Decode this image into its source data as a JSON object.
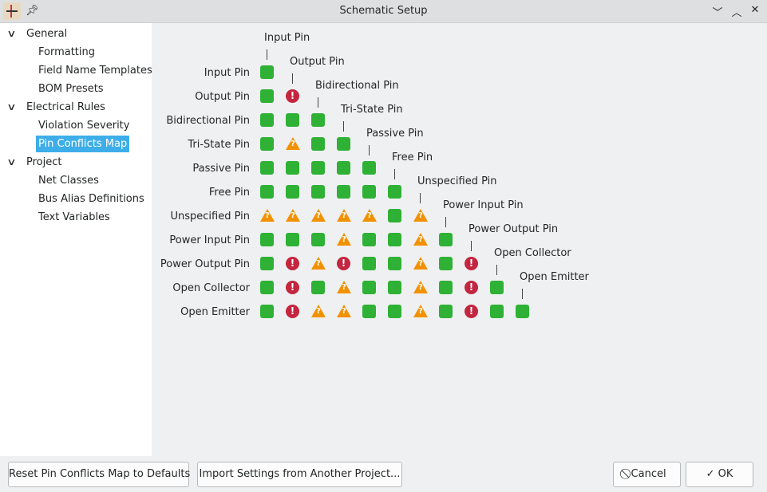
{
  "window": {
    "title": "Schematic Setup",
    "icons": [
      "kicad-schematic-app-icon",
      "pin-icon",
      "minimize-icon",
      "maximize-icon",
      "close-icon"
    ]
  },
  "sidebar": {
    "groups": [
      {
        "label": "General",
        "items": [
          "Formatting",
          "Field Name Templates",
          "BOM Presets"
        ]
      },
      {
        "label": "Electrical Rules",
        "items": [
          "Violation Severity",
          "Pin Conflicts Map"
        ]
      },
      {
        "label": "Project",
        "items": [
          "Net Classes",
          "Bus Alias Definitions",
          "Text Variables"
        ]
      }
    ],
    "selected": "Pin Conflicts Map"
  },
  "matrix": {
    "pin_types": [
      "Input Pin",
      "Output Pin",
      "Bidirectional Pin",
      "Tri-State Pin",
      "Passive Pin",
      "Free Pin",
      "Unspecified Pin",
      "Power Input Pin",
      "Power Output Pin",
      "Open Collector",
      "Open Emitter"
    ],
    "legend": {
      "ok": "#2eb135",
      "warn": "#f29100",
      "err": "#c4253f"
    },
    "cells": [
      [
        "ok"
      ],
      [
        "ok",
        "err"
      ],
      [
        "ok",
        "ok",
        "ok"
      ],
      [
        "ok",
        "warn",
        "ok",
        "ok"
      ],
      [
        "ok",
        "ok",
        "ok",
        "ok",
        "ok"
      ],
      [
        "ok",
        "ok",
        "ok",
        "ok",
        "ok",
        "ok"
      ],
      [
        "warn",
        "warn",
        "warn",
        "warn",
        "warn",
        "ok",
        "warn"
      ],
      [
        "ok",
        "ok",
        "ok",
        "warn",
        "ok",
        "ok",
        "warn",
        "ok"
      ],
      [
        "ok",
        "err",
        "warn",
        "err",
        "ok",
        "ok",
        "warn",
        "ok",
        "err"
      ],
      [
        "ok",
        "err",
        "ok",
        "warn",
        "ok",
        "ok",
        "warn",
        "ok",
        "err",
        "ok"
      ],
      [
        "ok",
        "err",
        "warn",
        "warn",
        "ok",
        "ok",
        "warn",
        "ok",
        "err",
        "ok",
        "ok"
      ]
    ]
  },
  "buttons": {
    "reset": "Reset Pin Conflicts Map to Defaults",
    "import": "Import Settings from Another Project...",
    "cancel": "Cancel",
    "ok": "OK"
  }
}
